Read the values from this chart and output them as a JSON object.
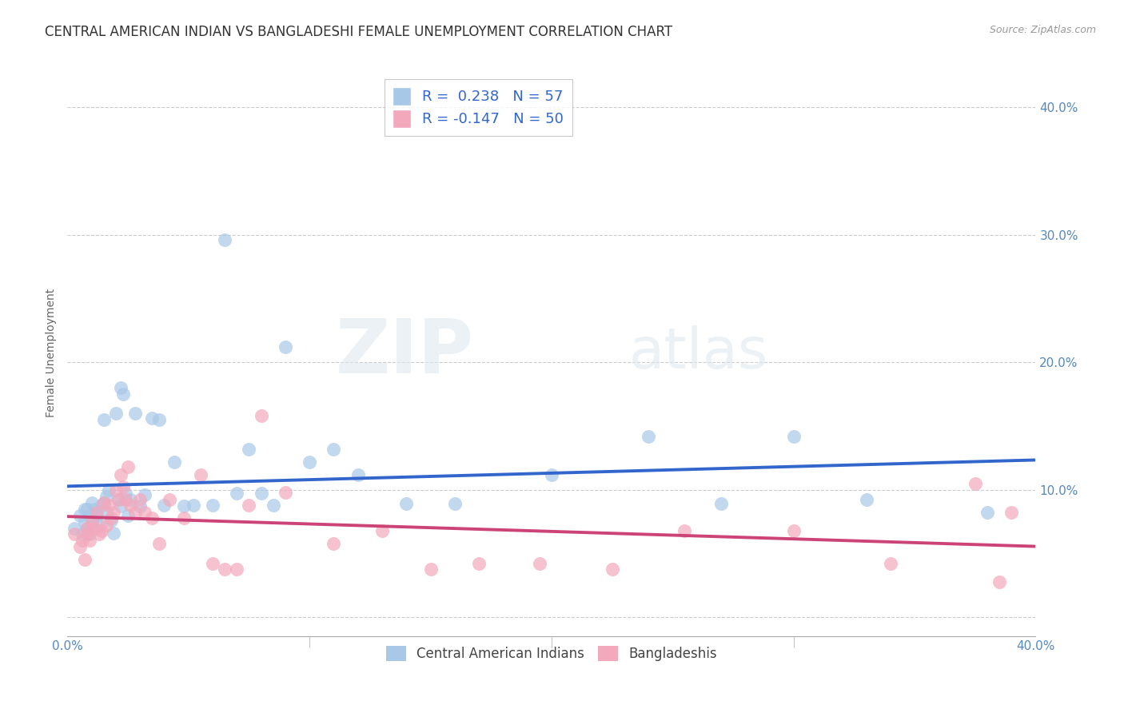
{
  "title": "CENTRAL AMERICAN INDIAN VS BANGLADESHI FEMALE UNEMPLOYMENT CORRELATION CHART",
  "source": "Source: ZipAtlas.com",
  "ylabel": "Female Unemployment",
  "xlim": [
    0.0,
    0.4
  ],
  "ylim": [
    -0.015,
    0.43
  ],
  "blue_R": "R =  0.238",
  "blue_N": "N = 57",
  "pink_R": "R = -0.147",
  "pink_N": "N = 50",
  "blue_color": "#a8c8e8",
  "pink_color": "#f4a8bc",
  "blue_line_color": "#3366cc",
  "pink_line_color": "#cc4477",
  "background_color": "#ffffff",
  "grid_color": "#cccccc",
  "blue_x": [
    0.003,
    0.005,
    0.006,
    0.007,
    0.007,
    0.008,
    0.008,
    0.009,
    0.009,
    0.01,
    0.01,
    0.011,
    0.012,
    0.013,
    0.014,
    0.015,
    0.015,
    0.016,
    0.016,
    0.017,
    0.018,
    0.019,
    0.02,
    0.021,
    0.022,
    0.022,
    0.023,
    0.024,
    0.025,
    0.026,
    0.028,
    0.03,
    0.032,
    0.035,
    0.038,
    0.04,
    0.044,
    0.048,
    0.052,
    0.06,
    0.065,
    0.07,
    0.075,
    0.08,
    0.085,
    0.09,
    0.1,
    0.11,
    0.12,
    0.14,
    0.16,
    0.2,
    0.24,
    0.27,
    0.3,
    0.33,
    0.38
  ],
  "blue_y": [
    0.07,
    0.08,
    0.065,
    0.075,
    0.085,
    0.07,
    0.085,
    0.065,
    0.08,
    0.09,
    0.075,
    0.085,
    0.08,
    0.072,
    0.088,
    0.155,
    0.09,
    0.082,
    0.095,
    0.1,
    0.076,
    0.066,
    0.16,
    0.092,
    0.087,
    0.18,
    0.175,
    0.097,
    0.08,
    0.092,
    0.16,
    0.087,
    0.096,
    0.156,
    0.155,
    0.088,
    0.122,
    0.087,
    0.088,
    0.088,
    0.296,
    0.097,
    0.132,
    0.097,
    0.088,
    0.212,
    0.122,
    0.132,
    0.112,
    0.089,
    0.089,
    0.112,
    0.142,
    0.089,
    0.142,
    0.092,
    0.082
  ],
  "pink_x": [
    0.003,
    0.005,
    0.006,
    0.007,
    0.008,
    0.008,
    0.009,
    0.01,
    0.011,
    0.012,
    0.013,
    0.014,
    0.015,
    0.016,
    0.017,
    0.018,
    0.019,
    0.02,
    0.021,
    0.022,
    0.023,
    0.024,
    0.025,
    0.026,
    0.028,
    0.03,
    0.032,
    0.035,
    0.038,
    0.042,
    0.048,
    0.055,
    0.06,
    0.065,
    0.07,
    0.075,
    0.08,
    0.09,
    0.11,
    0.13,
    0.15,
    0.17,
    0.195,
    0.225,
    0.255,
    0.3,
    0.34,
    0.375,
    0.385,
    0.39
  ],
  "pink_y": [
    0.065,
    0.055,
    0.06,
    0.045,
    0.065,
    0.07,
    0.06,
    0.075,
    0.07,
    0.082,
    0.065,
    0.068,
    0.09,
    0.072,
    0.088,
    0.078,
    0.082,
    0.1,
    0.092,
    0.112,
    0.102,
    0.092,
    0.118,
    0.088,
    0.082,
    0.092,
    0.082,
    0.078,
    0.058,
    0.092,
    0.078,
    0.112,
    0.042,
    0.038,
    0.038,
    0.088,
    0.158,
    0.098,
    0.058,
    0.068,
    0.038,
    0.042,
    0.042,
    0.038,
    0.068,
    0.068,
    0.042,
    0.105,
    0.028,
    0.082
  ],
  "yticks": [
    0.0,
    0.1,
    0.2,
    0.3,
    0.4
  ],
  "right_ytick_labels": [
    "10.0%",
    "20.0%",
    "30.0%",
    "40.0%"
  ],
  "right_ytick_vals": [
    0.1,
    0.2,
    0.3,
    0.4
  ],
  "watermark_zip": "ZIP",
  "watermark_atlas": "atlas",
  "title_fontsize": 12,
  "axis_label_fontsize": 10,
  "tick_fontsize": 11,
  "legend_fontsize": 13
}
